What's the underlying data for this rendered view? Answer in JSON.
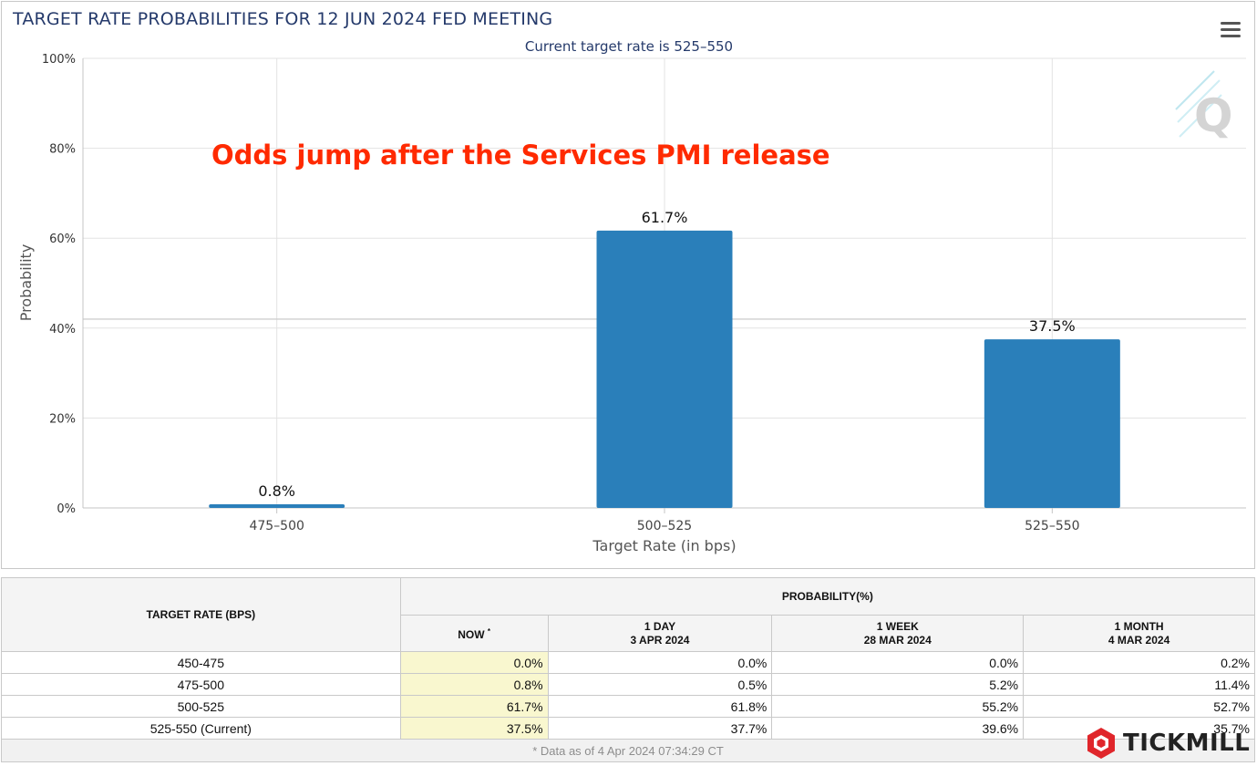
{
  "chart": {
    "title": "TARGET RATE PROBABILITIES FOR 12 JUN 2024 FED MEETING",
    "subtitle": "Current target rate is 525–550",
    "annotation": "Odds jump after the Services PMI release"
  },
  "chart_data": {
    "type": "bar",
    "categories": [
      "475–500",
      "500–525",
      "525–550"
    ],
    "values": [
      0.8,
      61.7,
      37.5
    ],
    "data_labels": [
      "0.8%",
      "61.7%",
      "37.5%"
    ],
    "xlabel": "Target Rate (in bps)",
    "ylabel": "Probability",
    "ylim": [
      0,
      100
    ],
    "y_ticks": [
      "0%",
      "20%",
      "40%",
      "60%",
      "80%",
      "100%"
    ],
    "grid": true,
    "bar_color": "#2a7fba",
    "annotation_color": "#ff2a00"
  },
  "table": {
    "rate_header": "TARGET RATE (BPS)",
    "probability_header": "PROBABILITY(%)",
    "columns": [
      {
        "label": "NOW",
        "sub": "",
        "star": "*"
      },
      {
        "label": "1 DAY",
        "sub": "3 APR 2024",
        "star": ""
      },
      {
        "label": "1 WEEK",
        "sub": "28 MAR 2024",
        "star": ""
      },
      {
        "label": "1 MONTH",
        "sub": "4 MAR 2024",
        "star": ""
      }
    ],
    "rows": [
      {
        "rate": "450-475",
        "values": [
          "0.0%",
          "0.0%",
          "0.0%",
          "0.2%"
        ]
      },
      {
        "rate": "475-500",
        "values": [
          "0.8%",
          "0.5%",
          "5.2%",
          "11.4%"
        ]
      },
      {
        "rate": "500-525",
        "values": [
          "61.7%",
          "61.8%",
          "55.2%",
          "52.7%"
        ]
      },
      {
        "rate": "525-550 (Current)",
        "values": [
          "37.5%",
          "37.7%",
          "39.6%",
          "35.7%"
        ]
      }
    ],
    "footnote": "* Data as of 4 Apr 2024 07:34:29 CT"
  },
  "brand": {
    "name": "TICKMILL",
    "color": "#e0262b"
  }
}
